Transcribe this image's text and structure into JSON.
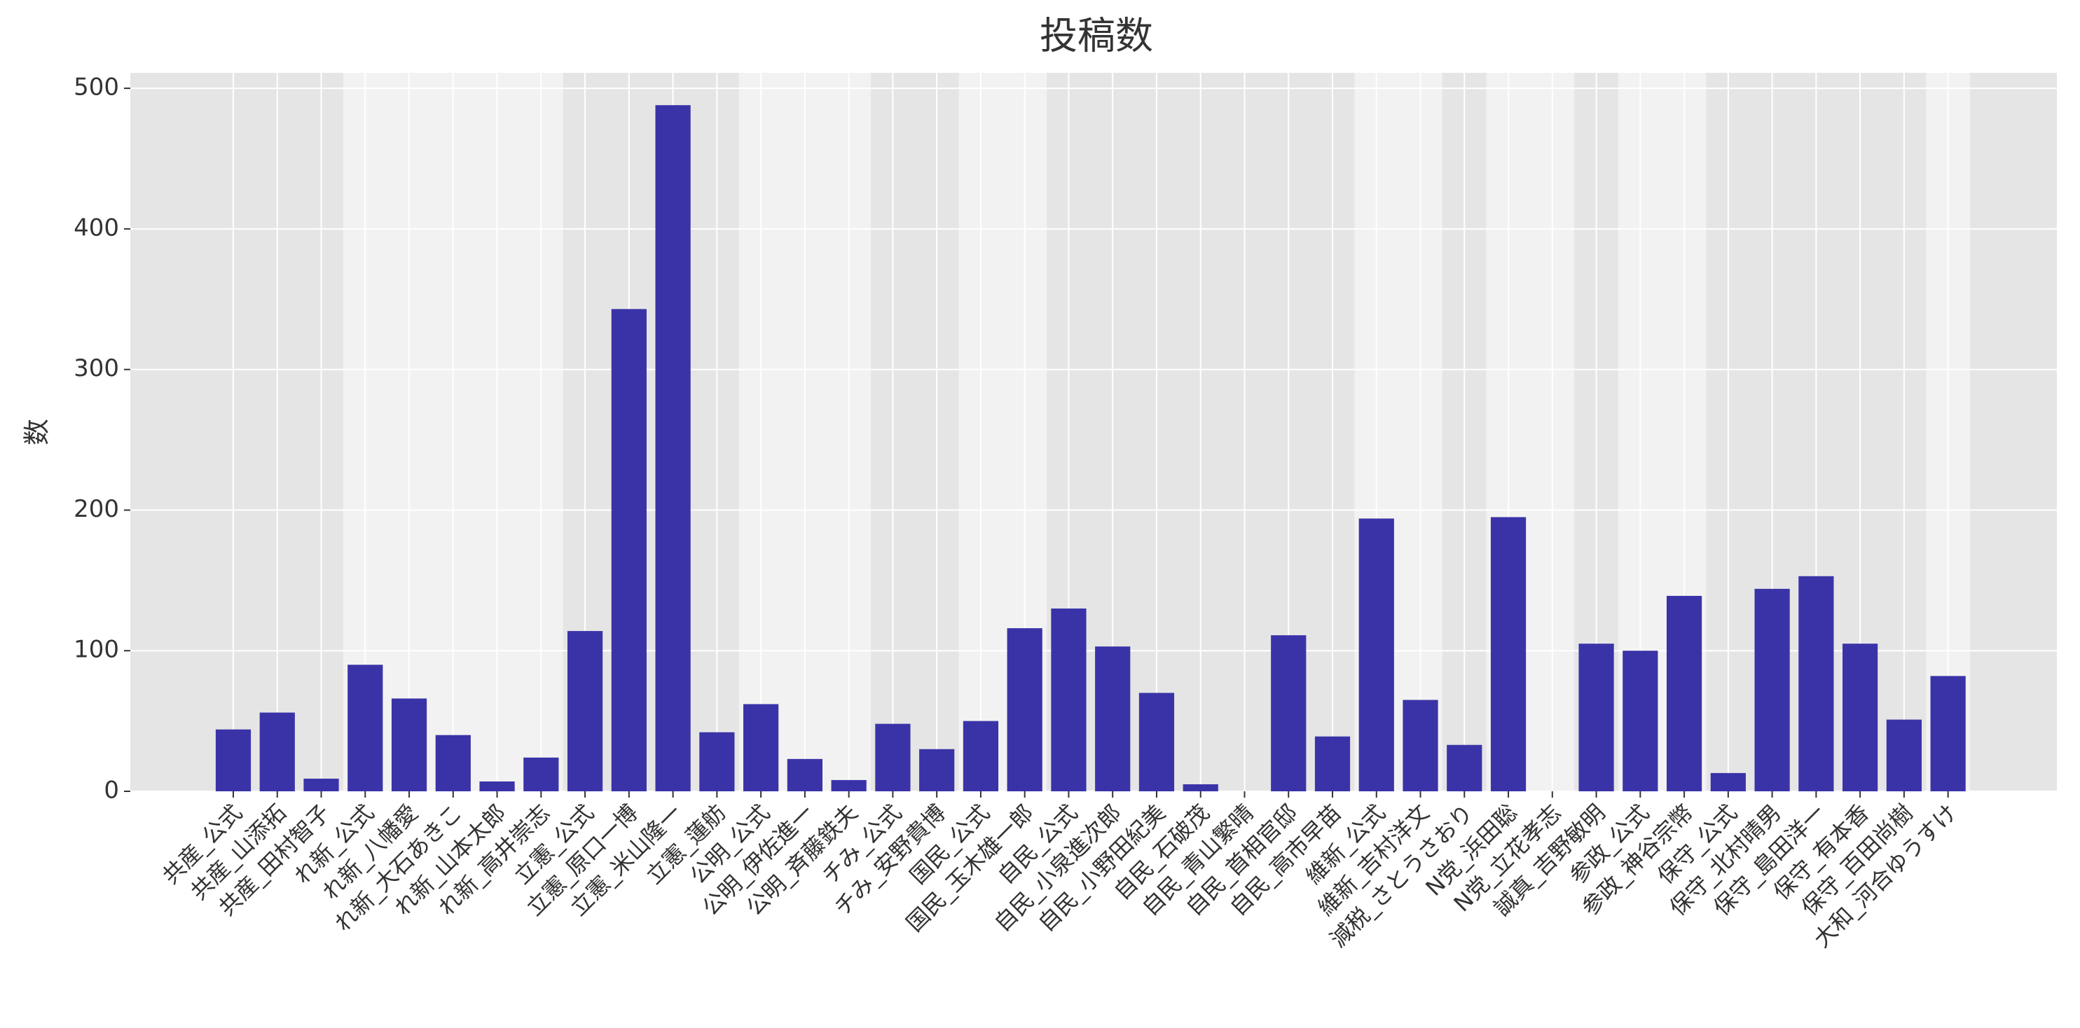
{
  "chart_data": {
    "type": "bar",
    "title": "投稿数",
    "ylabel": "数",
    "categories": [
      "共産_公式",
      "共産_山添拓",
      "共産_田村智子",
      "れ新_公式",
      "れ新_八幡愛",
      "れ新_大石あきこ",
      "れ新_山本太郎",
      "れ新_高井崇志",
      "立憲_公式",
      "立憲_原口一博",
      "立憲_米山隆一",
      "立憲_蓮舫",
      "公明_公式",
      "公明_伊佐進一",
      "公明_斉藤鉄夫",
      "チみ_公式",
      "チみ_安野貴博",
      "国民_公式",
      "国民_玉木雄一郎",
      "自民_公式",
      "自民_小泉進次郎",
      "自民_小野田紀美",
      "自民_石破茂",
      "自民_青山繁晴",
      "自民_首相官邸",
      "自民_高市早苗",
      "維新_公式",
      "維新_吉村洋文",
      "減税_さとうさおり",
      "N党_浜田聡",
      "N党_立花孝志",
      "誠真_吉野敏明",
      "参政_公式",
      "参政_神谷宗幣",
      "保守_公式",
      "保守_北村晴男",
      "保守_島田洋一",
      "保守_有本香",
      "保守_百田尚樹",
      "大和_河合ゆうすけ"
    ],
    "values": [
      44,
      56,
      9,
      90,
      66,
      40,
      7,
      24,
      114,
      343,
      488,
      42,
      62,
      23,
      8,
      48,
      30,
      50,
      116,
      130,
      103,
      70,
      5,
      0,
      111,
      39,
      194,
      65,
      33,
      195,
      0,
      105,
      100,
      139,
      13,
      144,
      153,
      105,
      51,
      82
    ],
    "color": "#3a33a8",
    "ylim": [
      0,
      511
    ],
    "yticks": [
      0,
      100,
      200,
      300,
      400,
      500
    ],
    "grid": true
  }
}
